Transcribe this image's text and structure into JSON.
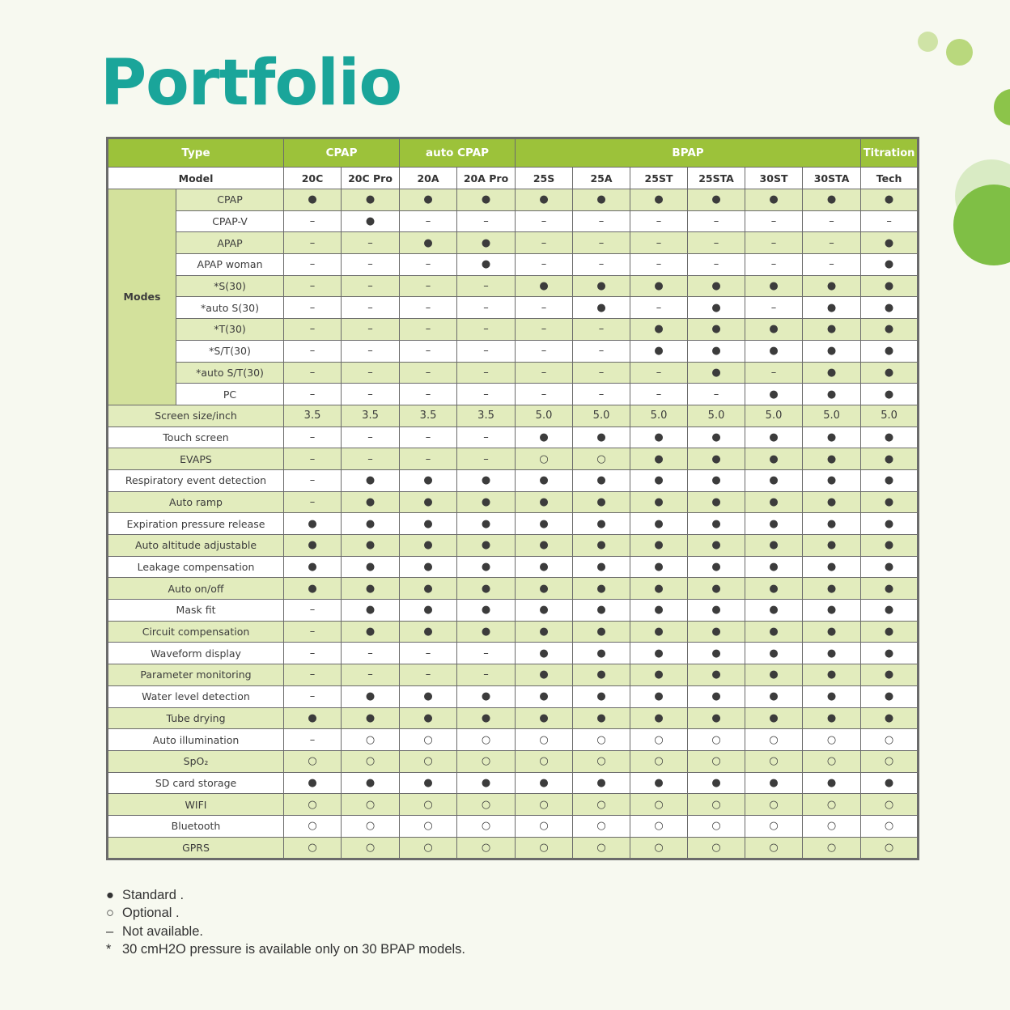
{
  "title": "Portfolio",
  "colors": {
    "title": "#1aa59a",
    "header": "#9cc23a",
    "shade": "#e2ecbd",
    "modes": "#d3e19c"
  },
  "groups": [
    {
      "label": "Type",
      "span": 2
    },
    {
      "label": "CPAP",
      "span": 2
    },
    {
      "label": "auto CPAP",
      "span": 2
    },
    {
      "label": "BPAP",
      "span": 6
    },
    {
      "label": "Titration",
      "span": 1
    }
  ],
  "model_label": "Model",
  "models": [
    "20C",
    "20C Pro",
    "20A",
    "20A Pro",
    "25S",
    "25A",
    "25ST",
    "25STA",
    "30ST",
    "30STA",
    "Tech"
  ],
  "modes_label": "Modes",
  "modes": [
    {
      "name": "CPAP",
      "values": [
        "●",
        "●",
        "●",
        "●",
        "●",
        "●",
        "●",
        "●",
        "●",
        "●",
        "●"
      ]
    },
    {
      "name": "CPAP-V",
      "values": [
        "–",
        "●",
        "–",
        "–",
        "–",
        "–",
        "–",
        "–",
        "–",
        "–",
        "–"
      ]
    },
    {
      "name": "APAP",
      "values": [
        "–",
        "–",
        "●",
        "●",
        "–",
        "–",
        "–",
        "–",
        "–",
        "–",
        "●"
      ]
    },
    {
      "name": "APAP woman",
      "values": [
        "–",
        "–",
        "–",
        "●",
        "–",
        "–",
        "–",
        "–",
        "–",
        "–",
        "●"
      ]
    },
    {
      "name": "*S(30)",
      "values": [
        "–",
        "–",
        "–",
        "–",
        "●",
        "●",
        "●",
        "●",
        "●",
        "●",
        "●"
      ]
    },
    {
      "name": "*auto S(30)",
      "values": [
        "–",
        "–",
        "–",
        "–",
        "–",
        "●",
        "–",
        "●",
        "–",
        "●",
        "●"
      ]
    },
    {
      "name": "*T(30)",
      "values": [
        "–",
        "–",
        "–",
        "–",
        "–",
        "–",
        "●",
        "●",
        "●",
        "●",
        "●"
      ]
    },
    {
      "name": "*S/T(30)",
      "values": [
        "–",
        "–",
        "–",
        "–",
        "–",
        "–",
        "●",
        "●",
        "●",
        "●",
        "●"
      ]
    },
    {
      "name": "*auto S/T(30)",
      "values": [
        "–",
        "–",
        "–",
        "–",
        "–",
        "–",
        "–",
        "●",
        "–",
        "●",
        "●"
      ]
    },
    {
      "name": "PC",
      "values": [
        "–",
        "–",
        "–",
        "–",
        "–",
        "–",
        "–",
        "–",
        "●",
        "●",
        "●"
      ]
    }
  ],
  "features": [
    {
      "name": "Screen size/inch",
      "values": [
        "3.5",
        "3.5",
        "3.5",
        "3.5",
        "5.0",
        "5.0",
        "5.0",
        "5.0",
        "5.0",
        "5.0",
        "5.0"
      ]
    },
    {
      "name": "Touch screen",
      "values": [
        "–",
        "–",
        "–",
        "–",
        "●",
        "●",
        "●",
        "●",
        "●",
        "●",
        "●"
      ]
    },
    {
      "name": "EVAPS",
      "values": [
        "–",
        "–",
        "–",
        "–",
        "○",
        "○",
        "●",
        "●",
        "●",
        "●",
        "●"
      ]
    },
    {
      "name": "Respiratory event detection",
      "values": [
        "–",
        "●",
        "●",
        "●",
        "●",
        "●",
        "●",
        "●",
        "●",
        "●",
        "●"
      ]
    },
    {
      "name": "Auto ramp",
      "values": [
        "–",
        "●",
        "●",
        "●",
        "●",
        "●",
        "●",
        "●",
        "●",
        "●",
        "●"
      ]
    },
    {
      "name": "Expiration pressure release",
      "values": [
        "●",
        "●",
        "●",
        "●",
        "●",
        "●",
        "●",
        "●",
        "●",
        "●",
        "●"
      ]
    },
    {
      "name": "Auto altitude adjustable",
      "values": [
        "●",
        "●",
        "●",
        "●",
        "●",
        "●",
        "●",
        "●",
        "●",
        "●",
        "●"
      ]
    },
    {
      "name": "Leakage compensation",
      "values": [
        "●",
        "●",
        "●",
        "●",
        "●",
        "●",
        "●",
        "●",
        "●",
        "●",
        "●"
      ]
    },
    {
      "name": "Auto on/off",
      "values": [
        "●",
        "●",
        "●",
        "●",
        "●",
        "●",
        "●",
        "●",
        "●",
        "●",
        "●"
      ]
    },
    {
      "name": "Mask fit",
      "values": [
        "–",
        "●",
        "●",
        "●",
        "●",
        "●",
        "●",
        "●",
        "●",
        "●",
        "●"
      ]
    },
    {
      "name": "Circuit compensation",
      "values": [
        "–",
        "●",
        "●",
        "●",
        "●",
        "●",
        "●",
        "●",
        "●",
        "●",
        "●"
      ]
    },
    {
      "name": "Waveform display",
      "values": [
        "–",
        "–",
        "–",
        "–",
        "●",
        "●",
        "●",
        "●",
        "●",
        "●",
        "●"
      ]
    },
    {
      "name": "Parameter monitoring",
      "values": [
        "–",
        "–",
        "–",
        "–",
        "●",
        "●",
        "●",
        "●",
        "●",
        "●",
        "●"
      ]
    },
    {
      "name": "Water level detection",
      "values": [
        "–",
        "●",
        "●",
        "●",
        "●",
        "●",
        "●",
        "●",
        "●",
        "●",
        "●"
      ]
    },
    {
      "name": "Tube drying",
      "values": [
        "●",
        "●",
        "●",
        "●",
        "●",
        "●",
        "●",
        "●",
        "●",
        "●",
        "●"
      ]
    },
    {
      "name": "Auto illumination",
      "values": [
        "–",
        "○",
        "○",
        "○",
        "○",
        "○",
        "○",
        "○",
        "○",
        "○",
        "○"
      ]
    },
    {
      "name": "SpO₂",
      "values": [
        "○",
        "○",
        "○",
        "○",
        "○",
        "○",
        "○",
        "○",
        "○",
        "○",
        "○"
      ]
    },
    {
      "name": "SD card storage",
      "values": [
        "●",
        "●",
        "●",
        "●",
        "●",
        "●",
        "●",
        "●",
        "●",
        "●",
        "●"
      ]
    },
    {
      "name": "WIFI",
      "values": [
        "○",
        "○",
        "○",
        "○",
        "○",
        "○",
        "○",
        "○",
        "○",
        "○",
        "○"
      ]
    },
    {
      "name": "Bluetooth",
      "values": [
        "○",
        "○",
        "○",
        "○",
        "○",
        "○",
        "○",
        "○",
        "○",
        "○",
        "○"
      ]
    },
    {
      "name": "GPRS",
      "values": [
        "○",
        "○",
        "○",
        "○",
        "○",
        "○",
        "○",
        "○",
        "○",
        "○",
        "○"
      ]
    }
  ],
  "legend": [
    {
      "symbol": "●",
      "text": "Standard ."
    },
    {
      "symbol": "○",
      "text": "Optional ."
    },
    {
      "symbol": "–",
      "text": "Not available."
    },
    {
      "symbol": "*",
      "text": "30 cmH2O pressure is available only on 30 BPAP models."
    }
  ]
}
